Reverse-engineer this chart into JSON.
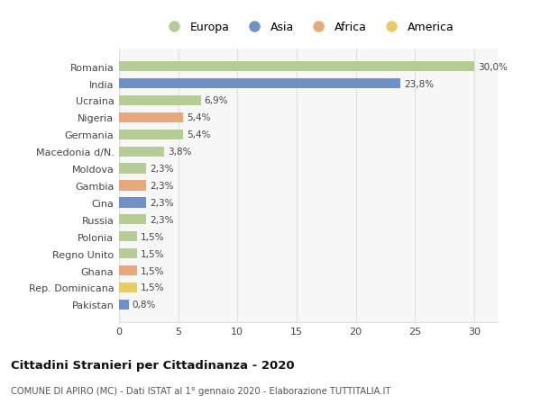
{
  "countries": [
    "Romania",
    "India",
    "Ucraina",
    "Nigeria",
    "Germania",
    "Macedonia d/N.",
    "Moldova",
    "Gambia",
    "Cina",
    "Russia",
    "Polonia",
    "Regno Unito",
    "Ghana",
    "Rep. Dominicana",
    "Pakistan"
  ],
  "values": [
    30.0,
    23.8,
    6.9,
    5.4,
    5.4,
    3.8,
    2.3,
    2.3,
    2.3,
    2.3,
    1.5,
    1.5,
    1.5,
    1.5,
    0.8
  ],
  "labels": [
    "30,0%",
    "23,8%",
    "6,9%",
    "5,4%",
    "5,4%",
    "3,8%",
    "2,3%",
    "2,3%",
    "2,3%",
    "2,3%",
    "1,5%",
    "1,5%",
    "1,5%",
    "1,5%",
    "0,8%"
  ],
  "colors": [
    "#b5cc96",
    "#7090c8",
    "#b5cc96",
    "#e8a87a",
    "#b5cc96",
    "#b5cc96",
    "#b5cc96",
    "#e8a87a",
    "#7090c8",
    "#b5cc96",
    "#b5cc96",
    "#b5cc96",
    "#e8a87a",
    "#e8cc6a",
    "#7090c8"
  ],
  "legend_labels": [
    "Europa",
    "Asia",
    "Africa",
    "America"
  ],
  "legend_colors": [
    "#b5cc96",
    "#7090c8",
    "#e8a87a",
    "#e8cc6a"
  ],
  "title": "Cittadini Stranieri per Cittadinanza - 2020",
  "subtitle": "COMUNE DI APIRO (MC) - Dati ISTAT al 1° gennaio 2020 - Elaborazione TUTTITALIA.IT",
  "xlim": [
    0,
    32
  ],
  "xticks": [
    0,
    5,
    10,
    15,
    20,
    25,
    30
  ],
  "bg_color": "#ffffff",
  "plot_bg_color": "#f7f7f7",
  "grid_color": "#e0e0e0"
}
